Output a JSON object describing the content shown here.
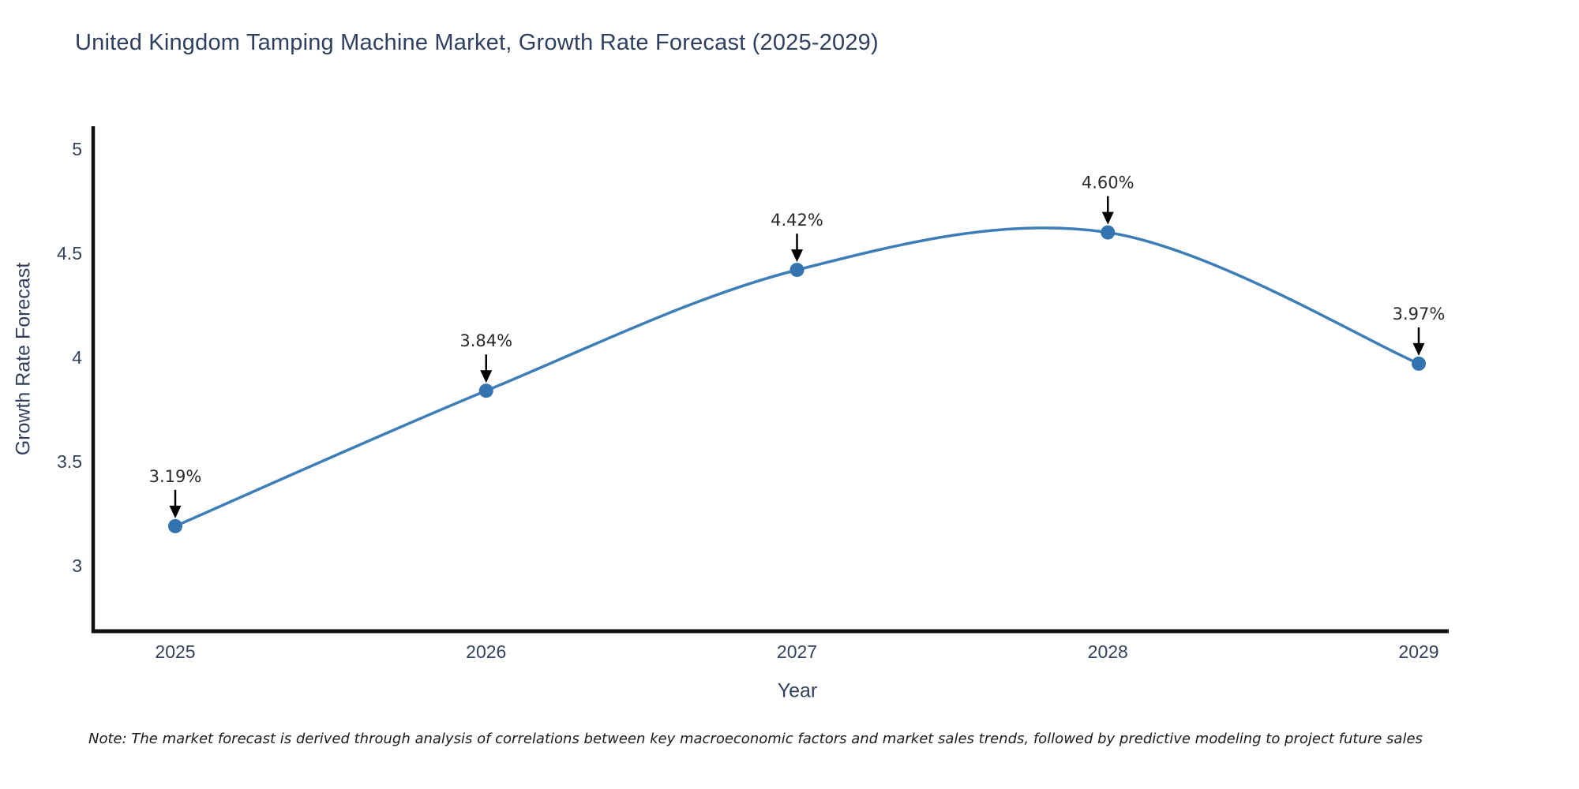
{
  "title": "United Kingdom Tamping Machine Market, Growth Rate Forecast (2025-2029)",
  "note": "Note: The market forecast is derived through analysis of correlations between key macroeconomic factors and market sales trends, followed by predictive modeling to project future sales",
  "chart_data": {
    "type": "line",
    "title": "United Kingdom Tamping Machine Market, Growth Rate Forecast (2025-2029)",
    "x": [
      "2025",
      "2026",
      "2027",
      "2028",
      "2029"
    ],
    "values": [
      3.19,
      3.84,
      4.42,
      4.6,
      3.97
    ],
    "point_labels": [
      "3.19%",
      "3.84%",
      "4.42%",
      "4.60%",
      "3.97%"
    ],
    "xlabel": "Year",
    "ylabel": "Growth Rate Forecast",
    "yticks": [
      3,
      3.5,
      4,
      4.5,
      5
    ],
    "ylim": [
      2.68,
      5.11
    ],
    "grid": false,
    "legend": "none",
    "line_style": "smooth-spline",
    "marker": "circle",
    "annotation_arrows": true,
    "colors": {
      "line": "#3d7db8",
      "marker": "#3374b0",
      "axis": "#111111",
      "title": "#2f3f5f",
      "tick": "#33415c",
      "annotation": "#2a2a2a",
      "arrow": "#000000",
      "background": "#ffffff"
    }
  }
}
